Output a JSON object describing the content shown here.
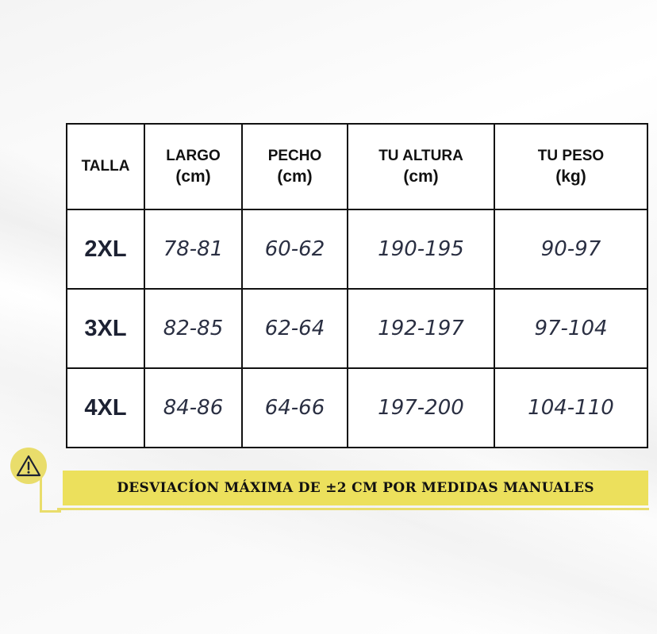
{
  "table": {
    "headers": [
      {
        "label": "TALLA",
        "unit": ""
      },
      {
        "label": "LARGO",
        "unit": "(cm)"
      },
      {
        "label": "PECHO",
        "unit": "(cm)"
      },
      {
        "label": "TU ALTURA",
        "unit": "(cm)"
      },
      {
        "label": "TU PESO",
        "unit": "(kg)"
      }
    ],
    "rows": [
      {
        "size": "2XL",
        "largo": "78-81",
        "pecho": "60-62",
        "altura": "190-195",
        "peso": "90-97"
      },
      {
        "size": "3XL",
        "largo": "82-85",
        "pecho": "62-64",
        "altura": "192-197",
        "peso": "97-104"
      },
      {
        "size": "4XL",
        "largo": "84-86",
        "pecho": "64-66",
        "altura": "197-200",
        "peso": "104-110"
      }
    ]
  },
  "warning": {
    "icon": "warning-triangle-icon",
    "text": "DESVIACÍON MÁXIMA DE ±2 CM POR MEDIDAS MANUALES",
    "accent_color": "#ece05c"
  }
}
